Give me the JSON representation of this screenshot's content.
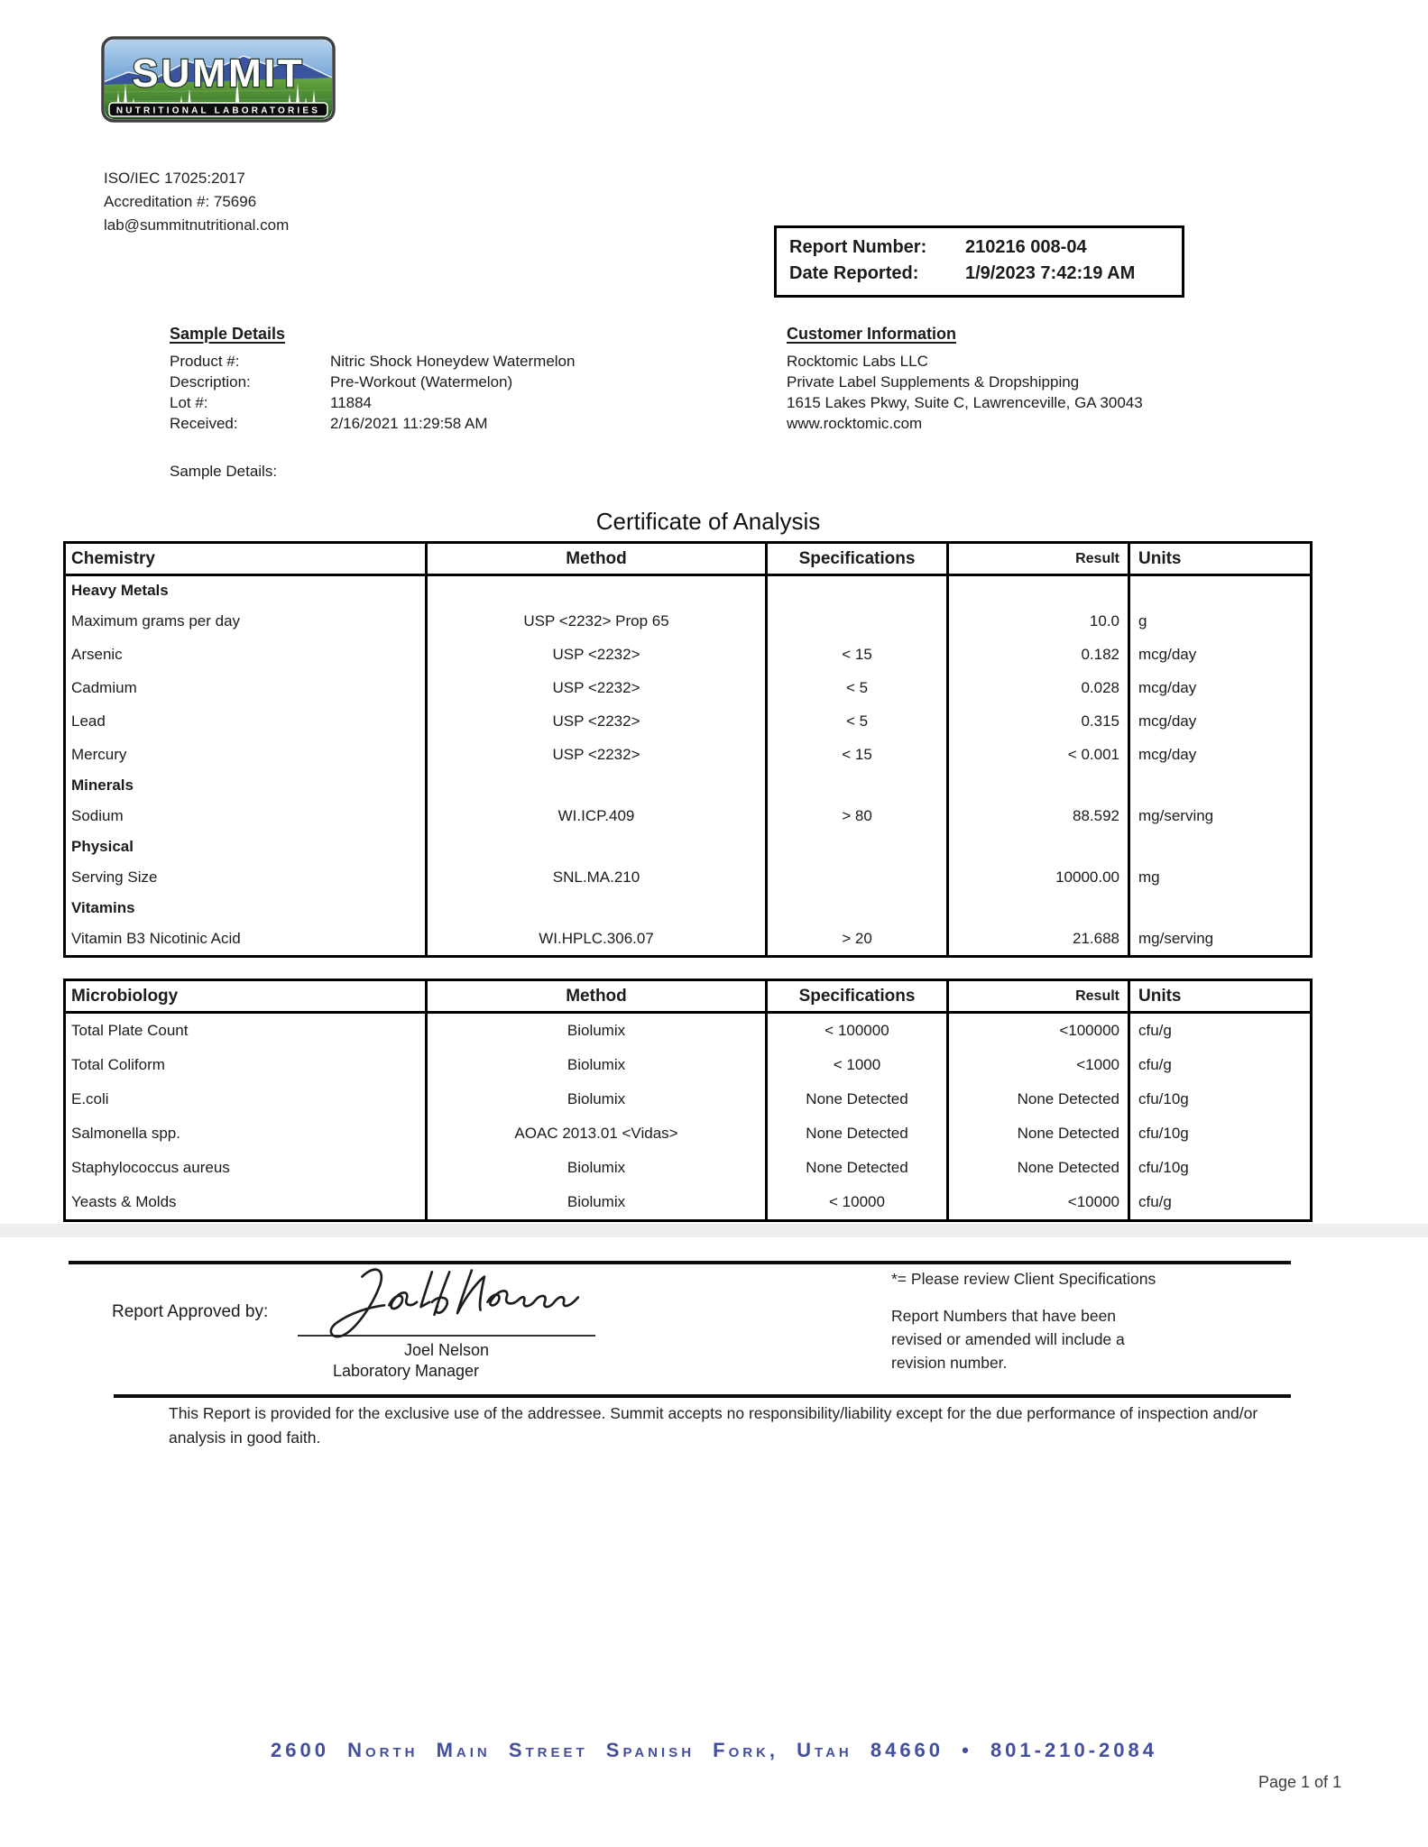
{
  "logo": {
    "title": "SUMMIT",
    "subtitle": "NUTRITIONAL LABORATORIES"
  },
  "accreditation": {
    "iso": "ISO/IEC 17025:2017",
    "number": "Accreditation #: 75696",
    "email": "lab@summitnutritional.com"
  },
  "report_box": {
    "report_number_label": "Report Number:",
    "report_number": "210216 008-04",
    "date_reported_label": "Date Reported:",
    "date_reported": "1/9/2023 7:42:19 AM"
  },
  "sample_details": {
    "heading": "Sample Details",
    "rows": [
      {
        "label": "Product #:",
        "value": "Nitric Shock Honeydew Watermelon"
      },
      {
        "label": "Description:",
        "value": "Pre-Workout (Watermelon)"
      },
      {
        "label": "Lot #:",
        "value": "11884"
      },
      {
        "label": "Received:",
        "value": "2/16/2021 11:29:58 AM"
      }
    ],
    "footer_label": "Sample Details:"
  },
  "customer_information": {
    "heading": "Customer Information",
    "lines": [
      "Rocktomic Labs LLC",
      "Private Label Supplements & Dropshipping",
      "1615 Lakes Pkwy, Suite C, Lawrenceville, GA 30043",
      "www.rocktomic.com"
    ]
  },
  "title": "Certificate of Analysis",
  "chemistry_table": {
    "headers": [
      "Chemistry",
      "Method",
      "Specifications",
      "Result",
      "Units"
    ],
    "rows": [
      {
        "type": "section",
        "name": "Heavy Metals"
      },
      {
        "type": "data",
        "name": "Maximum grams per day",
        "method": "USP <2232> Prop 65",
        "spec": "",
        "result": "10.0",
        "units": "g"
      },
      {
        "type": "data",
        "name": "Arsenic",
        "method": "USP <2232>",
        "spec": "< 15",
        "result": "0.182",
        "units": "mcg/day"
      },
      {
        "type": "data",
        "name": "Cadmium",
        "method": "USP <2232>",
        "spec": "< 5",
        "result": "0.028",
        "units": "mcg/day"
      },
      {
        "type": "data",
        "name": "Lead",
        "method": "USP <2232>",
        "spec": "< 5",
        "result": "0.315",
        "units": "mcg/day"
      },
      {
        "type": "data",
        "name": "Mercury",
        "method": "USP <2232>",
        "spec": "< 15",
        "result": "< 0.001",
        "units": "mcg/day"
      },
      {
        "type": "section",
        "name": "Minerals"
      },
      {
        "type": "data",
        "name": "Sodium",
        "method": "WI.ICP.409",
        "spec": "> 80",
        "result": "88.592",
        "units": "mg/serving"
      },
      {
        "type": "section",
        "name": "Physical"
      },
      {
        "type": "data",
        "name": "Serving Size",
        "method": "SNL.MA.210",
        "spec": "",
        "result": "10000.00",
        "units": "mg"
      },
      {
        "type": "section",
        "name": "Vitamins"
      },
      {
        "type": "data",
        "name": "Vitamin B3 Nicotinic Acid",
        "method": "WI.HPLC.306.07",
        "spec": "> 20",
        "result": "21.688",
        "units": "mg/serving"
      }
    ]
  },
  "microbiology_table": {
    "headers": [
      "Microbiology",
      "Method",
      "Specifications",
      "Result",
      "Units"
    ],
    "rows": [
      {
        "type": "data",
        "name": "Total Plate Count",
        "method": "Biolumix",
        "spec": "< 100000",
        "result": "<100000",
        "units": "cfu/g"
      },
      {
        "type": "data",
        "name": "Total Coliform",
        "method": "Biolumix",
        "spec": "< 1000",
        "result": "<1000",
        "units": "cfu/g"
      },
      {
        "type": "data",
        "name": "E.coli",
        "method": "Biolumix",
        "spec": "None Detected",
        "result": "None Detected",
        "units": "cfu/10g"
      },
      {
        "type": "data",
        "name": "Salmonella spp.",
        "method": "AOAC 2013.01 <Vidas>",
        "spec": "None Detected",
        "result": "None Detected",
        "units": "cfu/10g"
      },
      {
        "type": "data",
        "name": "Staphylococcus aureus",
        "method": "Biolumix",
        "spec": "None Detected",
        "result": "None Detected",
        "units": "cfu/10g"
      },
      {
        "type": "data",
        "name": "Yeasts & Molds",
        "method": "Biolumix",
        "spec": "< 10000",
        "result": "<10000",
        "units": "cfu/g"
      }
    ]
  },
  "approval": {
    "label": "Report Approved by:",
    "approver_name": "Joel Nelson",
    "approver_title": "Laboratory Manager"
  },
  "notes": {
    "star_note": "*= Please review Client Specifications",
    "revision_note": "Report Numbers that have been revised or amended will include a revision number."
  },
  "disclaimer": "This Report is provided for the exclusive use of the addressee. Summit accepts no responsibility/liability except for the due performance of inspection and/or analysis in good faith.",
  "footer": {
    "address": "2600 North Main Street   Spanish Fork, Utah   84660 • 801-210-2084",
    "page_indicator": "Page 1 of 1"
  },
  "colors": {
    "footer_blue": "#434e9e",
    "logo_sky_blue": "#4a7ec2",
    "logo_grass_green": "#3f7d2e",
    "table_border": "#000000"
  }
}
